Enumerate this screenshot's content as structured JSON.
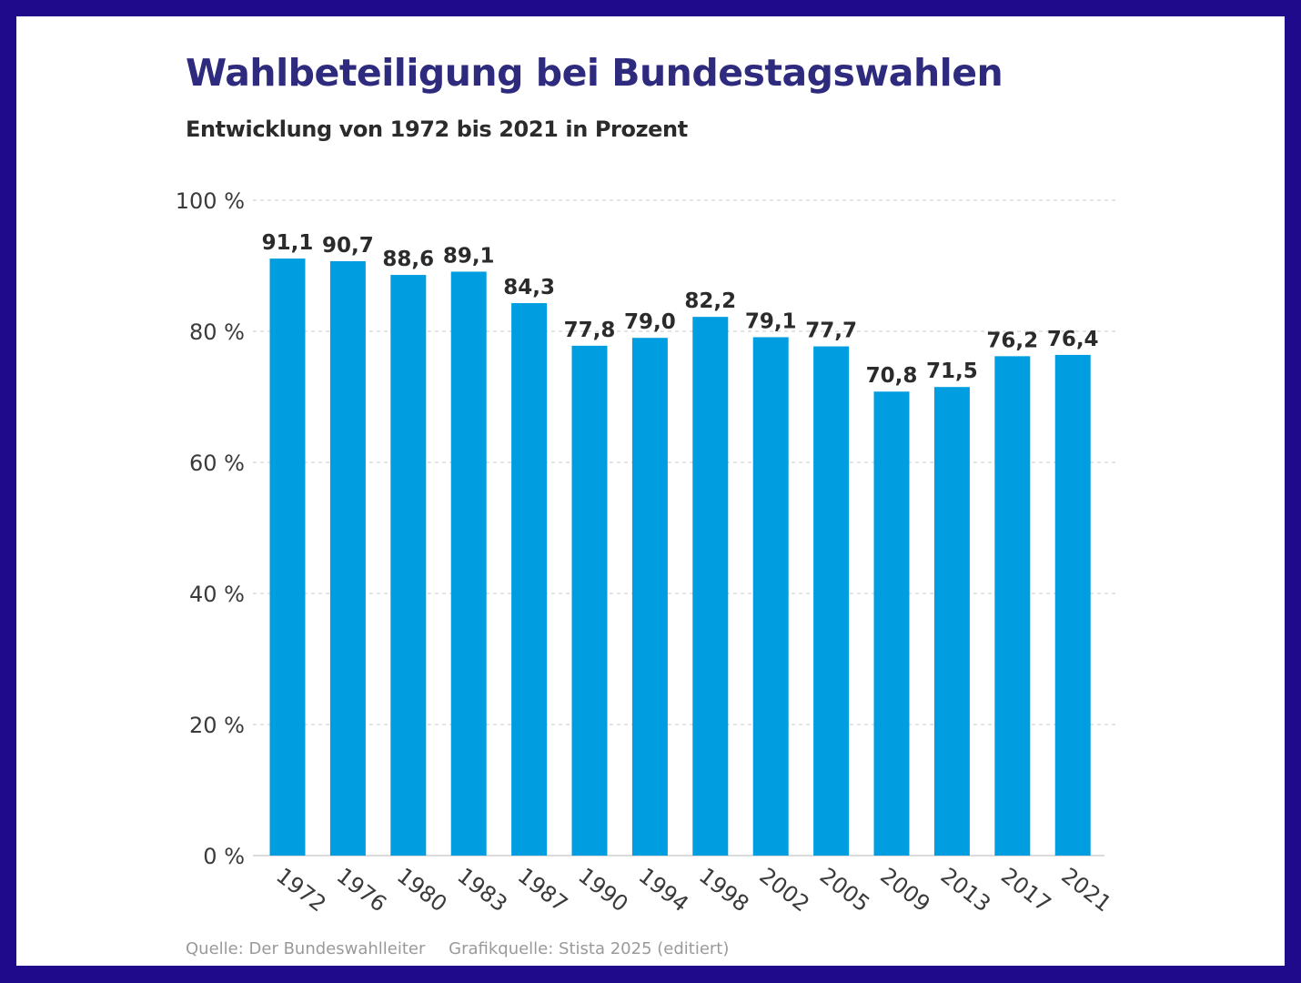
{
  "chart_data": {
    "type": "bar",
    "title": "Wahlbeteiligung bei Bundestagswahlen",
    "subtitle": "Entwicklung von 1972 bis 2021 in Prozent",
    "categories": [
      "1972",
      "1976",
      "1980",
      "1983",
      "1987",
      "1990",
      "1994",
      "1998",
      "2002",
      "2005",
      "2009",
      "2013",
      "2017",
      "2021"
    ],
    "values": [
      91.1,
      90.7,
      88.6,
      89.1,
      84.3,
      77.8,
      79.0,
      82.2,
      79.1,
      77.7,
      70.8,
      71.5,
      76.2,
      76.4
    ],
    "value_labels": [
      "91,1",
      "90,7",
      "88,6",
      "89,1",
      "84,3",
      "77,8",
      "79,0",
      "82,2",
      "79,1",
      "77,7",
      "70,8",
      "71,5",
      "76,2",
      "76,4"
    ],
    "yticks": [
      0,
      20,
      40,
      60,
      80,
      100
    ],
    "ytick_labels": [
      "0 %",
      "20 %",
      "40 %",
      "60 %",
      "80 %",
      "100 %"
    ],
    "ylim": [
      0,
      100
    ],
    "xlabel": "",
    "ylabel": "",
    "grid": true,
    "bar_color": "#009ee0",
    "legend": "none"
  },
  "footer": {
    "source": "Quelle: Der Bundeswahlleiter",
    "graphic_source": "Grafikquelle: Stista 2025 (editiert)"
  },
  "colors": {
    "border": "#1f0a8c",
    "title": "#2e2a7e",
    "bar": "#009ee0"
  }
}
